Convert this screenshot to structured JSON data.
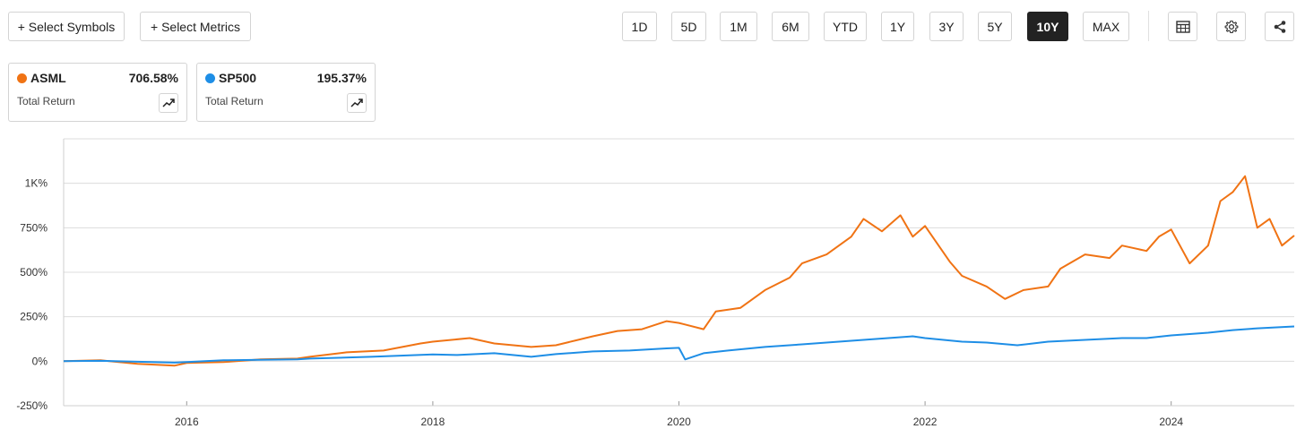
{
  "toolbar": {
    "select_symbols": "+ Select Symbols",
    "select_metrics": "+ Select Metrics",
    "ranges": [
      "1D",
      "5D",
      "1M",
      "6M",
      "YTD",
      "1Y",
      "3Y",
      "5Y",
      "10Y",
      "MAX"
    ],
    "active_range": "10Y",
    "icons": [
      "table-icon",
      "settings-icon",
      "share-icon"
    ]
  },
  "legend": [
    {
      "symbol": "ASML",
      "value": "706.58%",
      "metric": "Total Return",
      "color": "#f07314"
    },
    {
      "symbol": "SP500",
      "value": "195.37%",
      "metric": "Total Return",
      "color": "#1e8ee6"
    }
  ],
  "chart_data": {
    "type": "line",
    "y_ticks": [
      -250,
      0,
      250,
      500,
      750,
      1000
    ],
    "y_tick_labels": [
      "-250%",
      "0%",
      "250%",
      "500%",
      "750%",
      "1K%"
    ],
    "x_ticks": [
      2016,
      2018,
      2020,
      2022,
      2024
    ],
    "x_tick_labels": [
      "2016",
      "2018",
      "2020",
      "2022",
      "2024"
    ],
    "xlim": [
      2015.0,
      2025.0
    ],
    "ylim": [
      -250,
      1250
    ],
    "grid": true,
    "series": [
      {
        "name": "ASML",
        "color": "#f07314",
        "x": [
          2015.0,
          2015.3,
          2015.6,
          2015.9,
          2016.0,
          2016.3,
          2016.6,
          2016.9,
          2017.0,
          2017.3,
          2017.6,
          2017.9,
          2018.0,
          2018.3,
          2018.5,
          2018.8,
          2019.0,
          2019.3,
          2019.5,
          2019.7,
          2019.9,
          2020.0,
          2020.2,
          2020.3,
          2020.5,
          2020.7,
          2020.9,
          2021.0,
          2021.2,
          2021.4,
          2021.5,
          2021.65,
          2021.8,
          2021.9,
          2022.0,
          2022.2,
          2022.3,
          2022.5,
          2022.65,
          2022.8,
          2023.0,
          2023.1,
          2023.3,
          2023.5,
          2023.6,
          2023.8,
          2023.9,
          2024.0,
          2024.15,
          2024.3,
          2024.4,
          2024.5,
          2024.6,
          2024.7,
          2024.8,
          2024.9,
          2025.0
        ],
        "values": [
          0,
          5,
          -15,
          -25,
          -10,
          -5,
          10,
          15,
          25,
          50,
          60,
          100,
          110,
          130,
          100,
          80,
          90,
          140,
          170,
          180,
          225,
          215,
          180,
          280,
          300,
          400,
          470,
          550,
          600,
          700,
          800,
          730,
          820,
          700,
          760,
          560,
          480,
          420,
          350,
          400,
          420,
          520,
          600,
          580,
          650,
          620,
          700,
          740,
          550,
          650,
          900,
          950,
          1040,
          750,
          800,
          650,
          706.58
        ]
      },
      {
        "name": "SP500",
        "color": "#1e8ee6",
        "x": [
          2015.0,
          2015.3,
          2015.6,
          2015.9,
          2016.0,
          2016.3,
          2016.6,
          2016.9,
          2017.0,
          2017.5,
          2018.0,
          2018.2,
          2018.5,
          2018.8,
          2019.0,
          2019.3,
          2019.6,
          2019.9,
          2020.0,
          2020.05,
          2020.2,
          2020.4,
          2020.7,
          2021.0,
          2021.3,
          2021.6,
          2021.9,
          2022.0,
          2022.3,
          2022.5,
          2022.75,
          2023.0,
          2023.3,
          2023.6,
          2023.8,
          2024.0,
          2024.3,
          2024.5,
          2024.7,
          2025.0
        ],
        "values": [
          0,
          2,
          -3,
          -8,
          -5,
          5,
          8,
          10,
          15,
          25,
          38,
          35,
          45,
          25,
          40,
          55,
          60,
          72,
          75,
          10,
          45,
          60,
          80,
          95,
          110,
          125,
          140,
          130,
          110,
          105,
          90,
          110,
          120,
          130,
          130,
          145,
          160,
          175,
          185,
          195.37
        ]
      }
    ]
  }
}
